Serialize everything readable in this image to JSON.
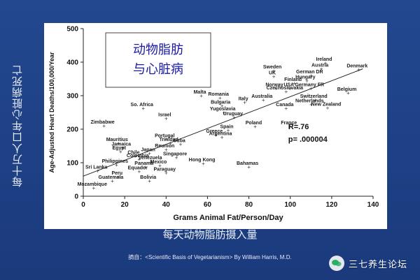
{
  "ylabel_cn": "每十万人口年心脏病死亡",
  "xlabel_cn": "每天动物脂肪摄入量",
  "source_text": "摘自：<Scientific Basis of Vegetarianism> By William Harris, M.D.",
  "watermark_text": "三七养生论坛",
  "chart_data": {
    "type": "scatter",
    "title_lines": [
      "动物脂肪",
      "与心脏病"
    ],
    "xlabel": "Grams Animal Fat/Person/Day",
    "ylabel": "Age-Adjusted Heart Deaths/100,000/Year",
    "xlim": [
      0,
      140
    ],
    "ylim": [
      0,
      500
    ],
    "xticks": [
      0,
      20,
      40,
      60,
      80,
      100,
      120,
      140
    ],
    "yticks": [
      0,
      100,
      200,
      300,
      400,
      500
    ],
    "stats": [
      "R=.76",
      "p= .000004"
    ],
    "trendline": [
      [
        0,
        60
      ],
      [
        135,
        380
      ]
    ],
    "points": [
      {
        "label": "Sweden",
        "x": 92,
        "y": 375
      },
      {
        "label": "UK",
        "x": 92,
        "y": 357
      },
      {
        "label": "Ireland",
        "x": 117,
        "y": 398
      },
      {
        "label": "Austria",
        "x": 115,
        "y": 380
      },
      {
        "label": "German DR",
        "x": 110,
        "y": 360
      },
      {
        "label": "Hungary",
        "x": 108,
        "y": 345
      },
      {
        "label": "Denmark",
        "x": 133,
        "y": 378
      },
      {
        "label": "Finland",
        "x": 102,
        "y": 338
      },
      {
        "label": "Norway",
        "x": 93,
        "y": 322
      },
      {
        "label": "USA",
        "x": 100,
        "y": 322
      },
      {
        "label": "Germany FR",
        "x": 110,
        "y": 322
      },
      {
        "label": "Czechoslovakia",
        "x": 98,
        "y": 313
      },
      {
        "label": "Belgium",
        "x": 128,
        "y": 308
      },
      {
        "label": "Malta",
        "x": 57,
        "y": 300
      },
      {
        "label": "Romania",
        "x": 66,
        "y": 294
      },
      {
        "label": "Australia",
        "x": 87,
        "y": 288
      },
      {
        "label": "Italy",
        "x": 78,
        "y": 280
      },
      {
        "label": "Switzerland",
        "x": 112,
        "y": 288
      },
      {
        "label": "Netherlands",
        "x": 110,
        "y": 274
      },
      {
        "label": "New Zealand",
        "x": 118,
        "y": 264
      },
      {
        "label": "Canada",
        "x": 98,
        "y": 262
      },
      {
        "label": "Bulgaria",
        "x": 67,
        "y": 270
      },
      {
        "label": "Yugoslavia",
        "x": 68,
        "y": 250
      },
      {
        "label": "Uruguay",
        "x": 73,
        "y": 235
      },
      {
        "label": "So. Africa",
        "x": 29,
        "y": 262
      },
      {
        "label": "Israel",
        "x": 40,
        "y": 232
      },
      {
        "label": "Poland",
        "x": 83,
        "y": 208
      },
      {
        "label": "France",
        "x": 100,
        "y": 208
      },
      {
        "label": "Zimbabwe",
        "x": 10,
        "y": 210
      },
      {
        "label": "Spain",
        "x": 70,
        "y": 197
      },
      {
        "label": "Greece",
        "x": 64,
        "y": 183
      },
      {
        "label": "Argentina",
        "x": 67,
        "y": 176
      },
      {
        "label": "Portugal",
        "x": 40,
        "y": 170
      },
      {
        "label": "Trinidad",
        "x": 42,
        "y": 158
      },
      {
        "label": "Cuba",
        "x": 47,
        "y": 155
      },
      {
        "label": "Mauritius",
        "x": 17,
        "y": 158
      },
      {
        "label": "Jamaica",
        "x": 19,
        "y": 145
      },
      {
        "label": "Reunion",
        "x": 40,
        "y": 140
      },
      {
        "label": "Egypt",
        "x": 18,
        "y": 133
      },
      {
        "label": "Japan",
        "x": 32,
        "y": 128
      },
      {
        "label": "Chile",
        "x": 25,
        "y": 120
      },
      {
        "label": "Colombia",
        "x": 27,
        "y": 110
      },
      {
        "label": "Singapore",
        "x": 45,
        "y": 116
      },
      {
        "label": "Venezuela",
        "x": 33,
        "y": 104
      },
      {
        "label": "Hong Kong",
        "x": 58,
        "y": 98
      },
      {
        "label": "Bahamas",
        "x": 80,
        "y": 88
      },
      {
        "label": "Philippines",
        "x": 16,
        "y": 94
      },
      {
        "label": "Panama",
        "x": 30,
        "y": 88
      },
      {
        "label": "Mexico",
        "x": 37,
        "y": 92
      },
      {
        "label": "Sri Lanka",
        "x": 7,
        "y": 76
      },
      {
        "label": "Equador",
        "x": 27,
        "y": 74
      },
      {
        "label": "Paraguay",
        "x": 40,
        "y": 70
      },
      {
        "label": "Peru",
        "x": 17,
        "y": 58
      },
      {
        "label": "Guatemala",
        "x": 14,
        "y": 46
      },
      {
        "label": "Bolivia",
        "x": 32,
        "y": 46
      },
      {
        "label": "Mozambique",
        "x": 5,
        "y": 25
      }
    ],
    "grid": false,
    "colors": {
      "point": "#333333",
      "text": "#1a1a1a",
      "title": "#1a1aa6"
    }
  }
}
